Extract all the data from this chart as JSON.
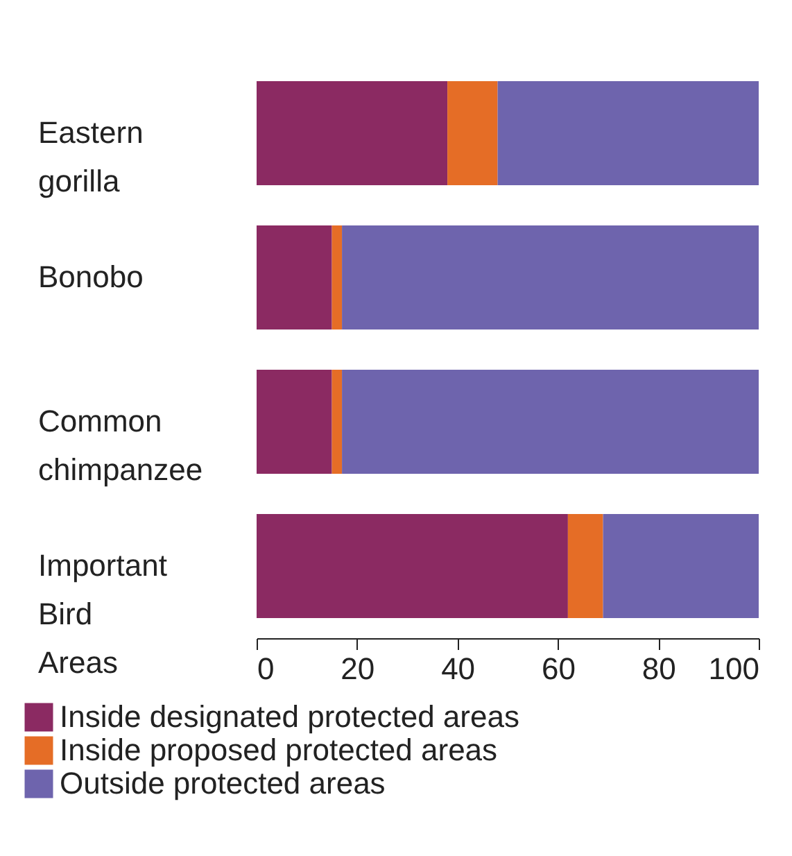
{
  "chart_data": {
    "type": "bar",
    "orientation": "horizontal",
    "stacked": true,
    "categories": [
      "Eastern gorilla",
      "Bonobo",
      "Common chimpanzee",
      "Important Bird Areas"
    ],
    "series": [
      {
        "name": "Inside designated protected areas",
        "color": "#8b2a62",
        "values": [
          38,
          15,
          15,
          62
        ]
      },
      {
        "name": "Inside proposed protected areas",
        "color": "#e56d26",
        "values": [
          10,
          2,
          2,
          7
        ]
      },
      {
        "name": "Outside protected areas",
        "color": "#6e64ad",
        "values": [
          52,
          83,
          83,
          31
        ]
      }
    ],
    "xlim": [
      0,
      100
    ],
    "xticks": [
      0,
      20,
      40,
      60,
      80,
      100
    ],
    "grid": false,
    "legend": "bottom"
  }
}
